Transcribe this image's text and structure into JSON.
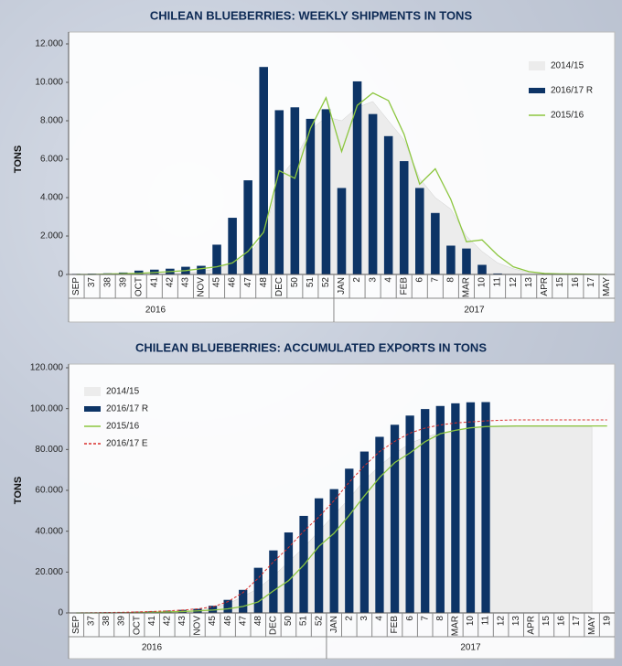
{
  "chart_data": [
    {
      "type": "bar",
      "title": "CHILEAN BLUEBERRIES: WEEKLY SHIPMENTS IN TONS",
      "y_label": "TONS",
      "legend": "top-right",
      "years": [
        "2016",
        "2017"
      ],
      "categories": [
        "SEP",
        "37",
        "38",
        "39",
        "OCT",
        "41",
        "42",
        "43",
        "NOV",
        "45",
        "46",
        "47",
        "48",
        "DEC",
        "50",
        "51",
        "52",
        "JAN",
        "2",
        "3",
        "4",
        "FEB",
        "6",
        "7",
        "8",
        "MAR",
        "10",
        "11",
        "12",
        "13",
        "APR",
        "15",
        "16",
        "17",
        "MAY"
      ],
      "ylim": [
        0,
        12000
      ],
      "yticks": [
        0,
        {
          "value": 2000,
          "label": "2.000"
        },
        {
          "value": 4000,
          "label": "4.000"
        },
        {
          "value": 6000,
          "label": "6.000"
        },
        {
          "value": 8000,
          "label": "8.000"
        },
        {
          "value": 10000,
          "label": "10.000"
        },
        {
          "value": 12000,
          "label": "12.000"
        }
      ],
      "series": [
        {
          "name": "2014/15",
          "kind": "area",
          "color": "#ececec",
          "values": [
            0,
            0,
            0,
            0,
            0,
            0,
            50,
            100,
            150,
            300,
            600,
            1000,
            2000,
            5000,
            6000,
            7500,
            8200,
            8000,
            8700,
            9000,
            8000,
            7000,
            5000,
            4000,
            3400,
            2000,
            1200,
            600,
            300,
            100,
            50,
            0,
            0,
            0,
            0
          ]
        },
        {
          "name": "2016/17 R",
          "kind": "bar",
          "color": "#0d3466",
          "values": [
            30,
            40,
            60,
            100,
            200,
            250,
            300,
            400,
            450,
            1550,
            2950,
            4900,
            10800,
            8550,
            8700,
            8100,
            8600,
            4500,
            10050,
            8350,
            7200,
            5900,
            4500,
            3200,
            1500,
            1350,
            500,
            50,
            null,
            null,
            null,
            null,
            null,
            null,
            null
          ]
        },
        {
          "name": "2015/16",
          "kind": "line",
          "color": "#8cc63f",
          "values": [
            0,
            0,
            20,
            40,
            60,
            100,
            150,
            200,
            300,
            400,
            600,
            1200,
            2200,
            5400,
            5000,
            7600,
            9200,
            6400,
            8800,
            9450,
            9050,
            7300,
            4700,
            5500,
            3900,
            1700,
            1800,
            1000,
            400,
            150,
            50,
            30,
            20,
            10,
            0
          ]
        }
      ]
    },
    {
      "type": "bar",
      "title": "CHILEAN BLUEBERRIES: ACCUMULATED EXPORTS IN TONS",
      "y_label": "TONS",
      "legend": "top-left",
      "years": [
        "2016",
        "2017"
      ],
      "categories": [
        "SEP",
        "37",
        "38",
        "39",
        "OCT",
        "41",
        "42",
        "43",
        "NOV",
        "45",
        "46",
        "47",
        "48",
        "DEC",
        "50",
        "51",
        "52",
        "JAN",
        "2",
        "3",
        "4",
        "FEB",
        "6",
        "7",
        "8",
        "MAR",
        "10",
        "11",
        "12",
        "13",
        "APR",
        "15",
        "16",
        "17",
        "MAY",
        "19"
      ],
      "ylim": [
        0,
        120000
      ],
      "yticks": [
        0,
        {
          "value": 20000,
          "label": "20.000"
        },
        {
          "value": 40000,
          "label": "40.000"
        },
        {
          "value": 60000,
          "label": "60.000"
        },
        {
          "value": 80000,
          "label": "80.000"
        },
        {
          "value": 100000,
          "label": "100.000"
        },
        {
          "value": 120000,
          "label": "120.000"
        }
      ],
      "series": [
        {
          "name": "2014/15",
          "kind": "area",
          "color": "#ececec",
          "values": [
            0,
            0,
            0,
            0,
            100,
            200,
            400,
            700,
            1200,
            2500,
            4500,
            8000,
            12000,
            18000,
            25000,
            32000,
            40000,
            48000,
            56000,
            65000,
            72000,
            78000,
            83000,
            86000,
            88000,
            89500,
            90500,
            91000,
            91000,
            91000,
            91000,
            91000,
            91000,
            91000,
            91000,
            null
          ]
        },
        {
          "name": "2016/17 R",
          "kind": "bar",
          "color": "#0d3466",
          "values": [
            100,
            200,
            300,
            400,
            600,
            800,
            1100,
            1500,
            2000,
            3500,
            6400,
            11300,
            22100,
            30600,
            39400,
            47500,
            56100,
            60600,
            70600,
            79000,
            86200,
            92100,
            96600,
            99800,
            101300,
            102600,
            103100,
            103200,
            null,
            null,
            null,
            null,
            null,
            null,
            null,
            null
          ]
        },
        {
          "name": "2015/16",
          "kind": "line",
          "color": "#8cc63f",
          "values": [
            0,
            0,
            0,
            100,
            200,
            300,
            500,
            700,
            1000,
            1400,
            2000,
            3200,
            5400,
            10800,
            15800,
            23400,
            32600,
            39000,
            47800,
            57300,
            66300,
            73600,
            78300,
            83800,
            87700,
            89400,
            90600,
            91200,
            91400,
            91500,
            91500,
            91500,
            91500,
            91500,
            91500,
            91500
          ]
        },
        {
          "name": "2016/17 E",
          "kind": "dashed",
          "color": "#d9302c",
          "values": [
            0,
            100,
            200,
            300,
            500,
            700,
            1000,
            1400,
            2000,
            3000,
            5500,
            10000,
            17000,
            25000,
            32000,
            40000,
            47000,
            55000,
            64000,
            72000,
            79000,
            84000,
            88000,
            90500,
            92000,
            93000,
            93500,
            94000,
            94300,
            94500,
            94500,
            94500,
            94500,
            94500,
            94500,
            94500
          ]
        }
      ]
    }
  ]
}
